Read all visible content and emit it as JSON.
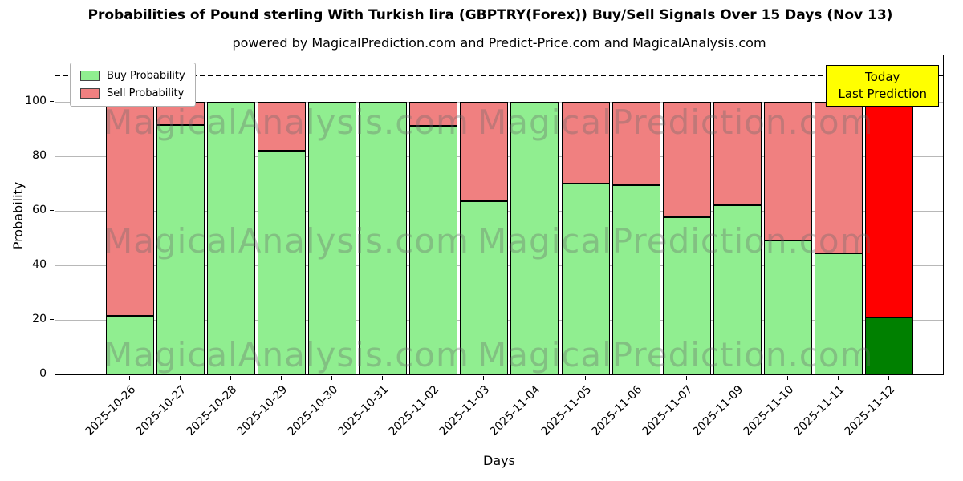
{
  "annotation_box": {
    "lines": [
      "Today",
      "Last Prediction"
    ],
    "bg": "#ffff00"
  },
  "watermarks": {
    "left": "MagicalAnalysis.com",
    "right": "MagicalPrediction.com"
  },
  "chart_data": {
    "type": "bar",
    "stacked": true,
    "title": "Probabilities of Pound sterling With Turkish lira (GBPTRY(Forex)) Buy/Sell Signals Over 15 Days (Nov 13)",
    "subtitle": "powered by MagicalPrediction.com and Predict-Price.com and MagicalAnalysis.com",
    "xlabel": "Days",
    "ylabel": "Probability",
    "ylim": [
      0,
      117
    ],
    "yticks": [
      0,
      20,
      40,
      60,
      80,
      100
    ],
    "dashed_line_y": 110,
    "grid": true,
    "legend_position": "upper left",
    "categories": [
      "2025-10-26",
      "2025-10-27",
      "2025-10-28",
      "2025-10-29",
      "2025-10-30",
      "2025-10-31",
      "2025-11-02",
      "2025-11-03",
      "2025-11-04",
      "2025-11-05",
      "2025-11-06",
      "2025-11-07",
      "2025-11-09",
      "2025-11-10",
      "2025-11-11",
      "2025-11-12"
    ],
    "series": [
      {
        "name": "Buy Probability",
        "color": "#90ee90",
        "today_color": "#008000",
        "values": [
          21.5,
          91.5,
          100,
          82,
          100,
          100,
          91,
          63.5,
          100,
          70,
          69.5,
          57.5,
          62,
          49,
          44.5,
          21
        ]
      },
      {
        "name": "Sell Probability",
        "color": "#f08080",
        "today_color": "#ff0000",
        "values": [
          78.5,
          8.5,
          0,
          18,
          0,
          0,
          9,
          36.5,
          0,
          30,
          30.5,
          42.5,
          38,
          51,
          55.5,
          79
        ]
      }
    ],
    "today_index": 15,
    "bar_edge_color": "#000000"
  }
}
